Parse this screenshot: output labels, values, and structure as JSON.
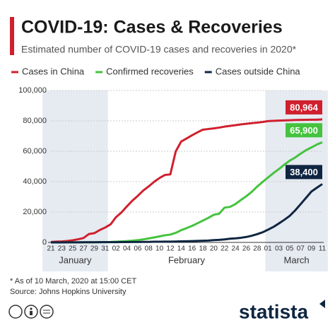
{
  "chart_data": {
    "type": "line",
    "title": "COVID-19: Cases & Recoveries",
    "subtitle": "Estimated number of COVID-19 cases and recoveries in 2020*",
    "categories": [
      "21",
      null,
      "23",
      null,
      "25",
      null,
      "27",
      null,
      "29",
      null,
      "31",
      null,
      "02",
      null,
      "04",
      null,
      "06",
      null,
      "08",
      null,
      "10",
      null,
      "12",
      null,
      "14",
      null,
      "16",
      null,
      "18",
      null,
      "20",
      null,
      "22",
      null,
      "24",
      null,
      "26",
      null,
      "28",
      null,
      "01",
      null,
      "03",
      null,
      "05",
      null,
      "07",
      null,
      "09",
      null,
      "11"
    ],
    "periods": [
      {
        "label": "January",
        "first": 0,
        "last": 10,
        "shaded": true
      },
      {
        "label": "February",
        "first": 11,
        "last": 39,
        "shaded": false
      },
      {
        "label": "March",
        "first": 40,
        "last": 50,
        "shaded": true
      }
    ],
    "series": [
      {
        "name": "Cases in China",
        "color": "#d0202e",
        "values": [
          300,
          548,
          643,
          920,
          1406,
          2075,
          2877,
          5509,
          6087,
          8141,
          9802,
          11891,
          16630,
          19716,
          23707,
          27440,
          30587,
          34110,
          36814,
          39829,
          42354,
          44386,
          44759,
          59895,
          66358,
          68413,
          70513,
          72434,
          74211,
          74619,
          75077,
          75550,
          76200,
          76700,
          77150,
          77658,
          78064,
          78497,
          78824,
          79251,
          79826,
          80026,
          80151,
          80270,
          80409,
          80552,
          80651,
          80695,
          80735,
          80754,
          80964
        ],
        "value_labels": [
          null,
          null,
          null,
          null,
          null,
          null,
          null,
          null,
          null,
          null,
          null,
          null,
          null,
          null,
          null,
          null,
          null,
          null,
          null,
          null,
          null,
          null,
          null,
          null,
          null,
          null,
          null,
          null,
          null,
          null,
          null,
          null,
          null,
          null,
          null,
          null,
          null,
          null,
          null,
          null,
          null,
          null,
          null,
          null,
          null,
          null,
          null,
          null,
          null,
          null,
          "80,964"
        ]
      },
      {
        "name": "Confirmed recoveries",
        "color": "#45c33f",
        "values": [
          0,
          28,
          30,
          36,
          39,
          52,
          61,
          107,
          126,
          143,
          222,
          284,
          472,
          623,
          852,
          1124,
          1487,
          2011,
          2616,
          3244,
          3946,
          4683,
          5150,
          6295,
          8058,
          9395,
          10865,
          12583,
          14352,
          16121,
          18177,
          18890,
          22886,
          23394,
          25227,
          27905,
          30384,
          33277,
          36711,
          39782,
          42716,
          45602,
          48228,
          51170,
          53796,
          55865,
          58359,
          60694,
          62494,
          64404,
          65900
        ],
        "value_labels": [
          null,
          null,
          null,
          null,
          null,
          null,
          null,
          null,
          null,
          null,
          null,
          null,
          null,
          null,
          null,
          null,
          null,
          null,
          null,
          null,
          null,
          null,
          null,
          null,
          null,
          null,
          null,
          null,
          null,
          null,
          null,
          null,
          null,
          null,
          null,
          null,
          null,
          null,
          null,
          null,
          null,
          null,
          null,
          null,
          null,
          null,
          null,
          null,
          null,
          null,
          "65,900"
        ]
      },
      {
        "name": "Cases outside China",
        "color": "#0f2541",
        "values": [
          0,
          10,
          25,
          40,
          57,
          64,
          87,
          105,
          118,
          153,
          173,
          183,
          188,
          212,
          227,
          265,
          317,
          343,
          361,
          457,
          476,
          523,
          538,
          595,
          685,
          780,
          896,
          999,
          1124,
          1212,
          1488,
          1697,
          1989,
          2445,
          2654,
          3047,
          3588,
          4396,
          5436,
          6653,
          8359,
          10187,
          12470,
          14854,
          17460,
          21045,
          25145,
          29300,
          33500,
          36000,
          38400
        ],
        "value_labels": [
          null,
          null,
          null,
          null,
          null,
          null,
          null,
          null,
          null,
          null,
          null,
          null,
          null,
          null,
          null,
          null,
          null,
          null,
          null,
          null,
          null,
          null,
          null,
          null,
          null,
          null,
          null,
          null,
          null,
          null,
          null,
          null,
          null,
          null,
          null,
          null,
          null,
          null,
          null,
          null,
          null,
          null,
          null,
          null,
          null,
          null,
          null,
          null,
          null,
          null,
          "38,400"
        ]
      }
    ],
    "ylim": [
      0,
      100000
    ],
    "yticks": [
      0,
      {
        "value": 20000,
        "label": "20,000"
      },
      {
        "value": 40000,
        "label": "40,000"
      },
      {
        "value": 60000,
        "label": "60,000"
      },
      {
        "value": 80000,
        "label": "80,000"
      },
      {
        "value": 100000,
        "label": "100,000"
      }
    ],
    "grid": true,
    "legend": "top",
    "footnote": "* As of 10 March, 2020 at 15:00 CET",
    "source": "Source: Johns Hopkins University",
    "brand": "statista"
  }
}
